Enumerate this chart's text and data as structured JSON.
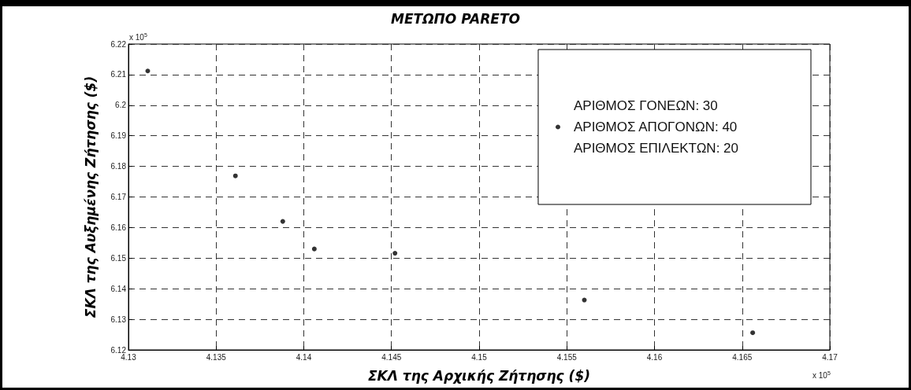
{
  "chart_data": {
    "type": "scatter",
    "title": "ΜΕΤΩΠΟ PARETO",
    "xlabel": "ΣΚΛ της Αρχικής Ζήτησης ($)",
    "ylabel": "ΣΚΛ της Αυξημένης Ζήτησης ($)",
    "x": [
      4.1311,
      4.1361,
      4.1388,
      4.1406,
      4.1452,
      4.156,
      4.1656
    ],
    "series": [
      {
        "name": "ΑΡΙΘΜΟΣ ΓΟΝΕΩΝ: 30\nΑΡΙΘΜΟΣ ΑΠΟΓΟΝΩΝ: 40\nΑΡΙΘΜΟΣ ΕΠΙΛΕΚΤΩΝ: 20",
        "color": "#000000",
        "values": [
          6.2112,
          6.1769,
          6.162,
          6.153,
          6.1516,
          6.1363,
          6.1256
        ]
      }
    ],
    "xlim": [
      4.13,
      4.17
    ],
    "xticks": [
      4.13,
      4.135,
      4.14,
      4.145,
      4.15,
      4.155,
      4.16,
      4.165,
      4.17
    ],
    "ylim": [
      6.12,
      6.22
    ],
    "yticks": [
      6.12,
      6.13,
      6.14,
      6.15,
      6.16,
      6.17,
      6.18,
      6.19,
      6.2,
      6.21,
      6.22
    ],
    "annotations": [
      "x 10$^{5}$",
      "x 10$^{5}$"
    ],
    "grid": true,
    "legend": "top right",
    "marker": "circle"
  }
}
